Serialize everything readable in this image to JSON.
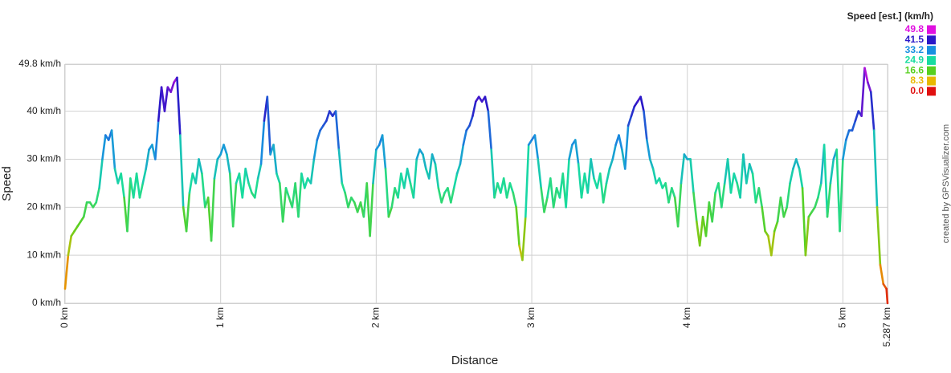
{
  "chart_data": {
    "type": "colorline",
    "xlabel": "Distance",
    "ylabel": "Speed",
    "credit": "created by GPSVisualizer.com",
    "legend_title": "Speed [est.] (km/h)",
    "colorscale": [
      {
        "value": 49.8,
        "color": "#e010e0"
      },
      {
        "value": 41.5,
        "color": "#2a18c8"
      },
      {
        "value": 33.2,
        "color": "#1890e0"
      },
      {
        "value": 24.9,
        "color": "#18dca0"
      },
      {
        "value": 16.6,
        "color": "#58d020"
      },
      {
        "value": 8.3,
        "color": "#e8b800"
      },
      {
        "value": 0,
        "label": "0.0",
        "color": "#e01010"
      }
    ],
    "xlim": [
      0,
      5.287
    ],
    "xticks": [
      {
        "value": 0,
        "label": "0 km"
      },
      {
        "value": 1,
        "label": "1 km"
      },
      {
        "value": 2,
        "label": "2 km"
      },
      {
        "value": 3,
        "label": "3 km"
      },
      {
        "value": 4,
        "label": "4 km"
      },
      {
        "value": 5,
        "label": "5 km"
      },
      {
        "value": 5.287,
        "label": "5.287 km"
      }
    ],
    "ylim": [
      0,
      49.8
    ],
    "yticks": [
      {
        "value": 0,
        "label": "0 km/h"
      },
      {
        "value": 10,
        "label": "10 km/h"
      },
      {
        "value": 20,
        "label": "20 km/h"
      },
      {
        "value": 30,
        "label": "30 km/h"
      },
      {
        "value": 40,
        "label": "40 km/h"
      },
      {
        "value": 49.8,
        "label": "49.8 km/h"
      }
    ],
    "grid": true,
    "x": [
      0,
      0.02,
      0.04,
      0.06,
      0.08,
      0.1,
      0.12,
      0.14,
      0.16,
      0.18,
      0.2,
      0.22,
      0.24,
      0.26,
      0.28,
      0.3,
      0.32,
      0.34,
      0.36,
      0.38,
      0.4,
      0.42,
      0.44,
      0.46,
      0.48,
      0.5,
      0.52,
      0.54,
      0.56,
      0.58,
      0.6,
      0.62,
      0.64,
      0.66,
      0.68,
      0.7,
      0.72,
      0.74,
      0.76,
      0.78,
      0.8,
      0.82,
      0.84,
      0.86,
      0.88,
      0.9,
      0.92,
      0.94,
      0.96,
      0.98,
      1,
      1.02,
      1.04,
      1.06,
      1.08,
      1.1,
      1.12,
      1.14,
      1.16,
      1.18,
      1.2,
      1.22,
      1.24,
      1.26,
      1.28,
      1.3,
      1.32,
      1.34,
      1.36,
      1.38,
      1.4,
      1.42,
      1.44,
      1.46,
      1.48,
      1.5,
      1.52,
      1.54,
      1.56,
      1.58,
      1.6,
      1.62,
      1.64,
      1.66,
      1.68,
      1.7,
      1.72,
      1.74,
      1.76,
      1.78,
      1.8,
      1.82,
      1.84,
      1.86,
      1.88,
      1.9,
      1.92,
      1.94,
      1.96,
      1.98,
      2,
      2.02,
      2.04,
      2.06,
      2.08,
      2.1,
      2.12,
      2.14,
      2.16,
      2.18,
      2.2,
      2.22,
      2.24,
      2.26,
      2.28,
      2.3,
      2.32,
      2.34,
      2.36,
      2.38,
      2.4,
      2.42,
      2.44,
      2.46,
      2.48,
      2.5,
      2.52,
      2.54,
      2.56,
      2.58,
      2.6,
      2.62,
      2.64,
      2.66,
      2.68,
      2.7,
      2.72,
      2.74,
      2.76,
      2.78,
      2.8,
      2.82,
      2.84,
      2.86,
      2.88,
      2.9,
      2.92,
      2.94,
      2.96,
      2.98,
      3,
      3.02,
      3.04,
      3.06,
      3.08,
      3.1,
      3.12,
      3.14,
      3.16,
      3.18,
      3.2,
      3.22,
      3.24,
      3.26,
      3.28,
      3.3,
      3.32,
      3.34,
      3.36,
      3.38,
      3.4,
      3.42,
      3.44,
      3.46,
      3.48,
      3.5,
      3.52,
      3.54,
      3.56,
      3.58,
      3.6,
      3.62,
      3.64,
      3.66,
      3.68,
      3.7,
      3.72,
      3.74,
      3.76,
      3.78,
      3.8,
      3.82,
      3.84,
      3.86,
      3.88,
      3.9,
      3.92,
      3.94,
      3.96,
      3.98,
      4,
      4.02,
      4.04,
      4.06,
      4.08,
      4.1,
      4.12,
      4.14,
      4.16,
      4.18,
      4.2,
      4.22,
      4.24,
      4.26,
      4.28,
      4.3,
      4.32,
      4.34,
      4.36,
      4.38,
      4.4,
      4.42,
      4.44,
      4.46,
      4.48,
      4.5,
      4.52,
      4.54,
      4.56,
      4.58,
      4.6,
      4.62,
      4.64,
      4.66,
      4.68,
      4.7,
      4.72,
      4.74,
      4.76,
      4.78,
      4.8,
      4.82,
      4.84,
      4.86,
      4.88,
      4.9,
      4.92,
      4.94,
      4.96,
      4.98,
      5,
      5.02,
      5.04,
      5.06,
      5.08,
      5.1,
      5.12,
      5.14,
      5.16,
      5.18,
      5.2,
      5.22,
      5.24,
      5.26,
      5.28,
      5.287
    ],
    "series": [
      {
        "name": "Speed",
        "values": [
          3,
          10,
          14,
          15,
          16,
          17,
          18,
          21,
          21,
          20,
          21,
          24,
          30,
          35,
          34,
          36,
          28,
          25,
          27,
          22,
          15,
          26,
          22,
          27,
          22,
          25,
          28,
          32,
          33,
          30,
          38,
          45,
          40,
          45,
          44,
          46,
          47,
          35,
          20,
          15,
          23,
          27,
          25,
          30,
          27,
          20,
          22,
          13,
          26,
          30,
          31,
          33,
          31,
          27,
          16,
          25,
          27,
          22,
          28,
          25,
          23,
          22,
          26,
          29,
          38,
          43,
          31,
          33,
          27,
          25,
          17,
          24,
          22,
          20,
          25,
          18,
          27,
          24,
          26,
          25,
          30,
          34,
          36,
          37,
          38,
          40,
          39,
          40,
          32,
          25,
          23,
          20,
          22,
          21,
          19,
          21,
          18,
          25,
          14,
          25,
          32,
          33,
          35,
          28,
          18,
          20,
          24,
          22,
          27,
          24,
          28,
          25,
          22,
          30,
          32,
          31,
          28,
          26,
          31,
          29,
          24,
          21,
          23,
          24,
          21,
          24,
          27,
          29,
          33,
          36,
          37,
          39,
          42,
          43,
          42,
          43,
          40,
          32,
          22,
          25,
          23,
          26,
          22,
          25,
          23,
          20,
          12,
          9,
          18,
          33,
          34,
          35,
          30,
          24,
          19,
          22,
          26,
          20,
          24,
          22,
          27,
          20,
          30,
          33,
          34,
          29,
          22,
          27,
          23,
          30,
          26,
          24,
          27,
          21,
          25,
          28,
          30,
          33,
          35,
          32,
          28,
          37,
          39,
          41,
          42,
          43,
          40,
          34,
          30,
          28,
          25,
          26,
          24,
          25,
          21,
          24,
          22,
          16,
          25,
          31,
          30,
          30,
          23,
          17,
          12,
          18,
          14,
          21,
          17,
          23,
          25,
          20,
          25,
          30,
          23,
          27,
          25,
          22,
          31,
          25,
          29,
          27,
          21,
          24,
          20,
          15,
          14,
          10,
          15,
          17,
          22,
          18,
          20,
          25,
          28,
          30,
          28,
          24,
          10,
          18,
          19,
          20,
          22,
          25,
          33,
          18,
          25,
          30,
          32,
          15,
          30,
          34,
          36,
          36,
          38,
          40,
          39,
          49,
          46,
          44,
          36,
          20,
          8,
          4,
          3,
          0
        ]
      }
    ]
  }
}
